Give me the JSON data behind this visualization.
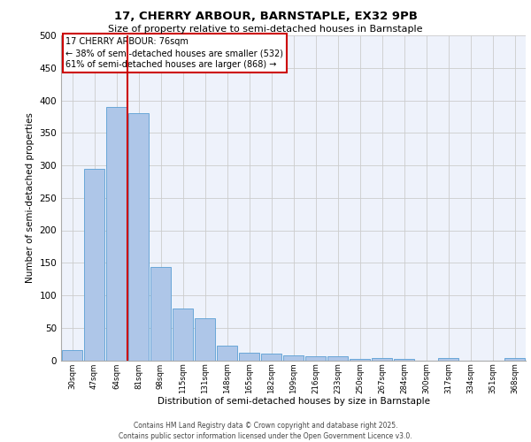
{
  "title1": "17, CHERRY ARBOUR, BARNSTAPLE, EX32 9PB",
  "title2": "Size of property relative to semi-detached houses in Barnstaple",
  "xlabel": "Distribution of semi-detached houses by size in Barnstaple",
  "ylabel": "Number of semi-detached properties",
  "categories": [
    "30sqm",
    "47sqm",
    "64sqm",
    "81sqm",
    "98sqm",
    "115sqm",
    "131sqm",
    "148sqm",
    "165sqm",
    "182sqm",
    "199sqm",
    "216sqm",
    "233sqm",
    "250sqm",
    "267sqm",
    "284sqm",
    "300sqm",
    "317sqm",
    "334sqm",
    "351sqm",
    "368sqm"
  ],
  "values": [
    15,
    295,
    390,
    380,
    143,
    80,
    65,
    22,
    12,
    10,
    7,
    6,
    6,
    2,
    4,
    2,
    0,
    3,
    0,
    0,
    3
  ],
  "bar_color": "#aec6e8",
  "bar_edge_color": "#5a9fd4",
  "grid_color": "#cccccc",
  "bg_color": "#eef2fb",
  "red_line_x": 2.5,
  "annotation_title": "17 CHERRY ARBOUR: 76sqm",
  "annotation_line1": "← 38% of semi-detached houses are smaller (532)",
  "annotation_line2": "61% of semi-detached houses are larger (868) →",
  "annotation_box_color": "#ffffff",
  "annotation_border_color": "#cc0000",
  "footer_line1": "Contains HM Land Registry data © Crown copyright and database right 2025.",
  "footer_line2": "Contains public sector information licensed under the Open Government Licence v3.0.",
  "ylim": [
    0,
    500
  ],
  "yticks": [
    0,
    50,
    100,
    150,
    200,
    250,
    300,
    350,
    400,
    450,
    500
  ],
  "title1_fontsize": 9.5,
  "title2_fontsize": 8.0
}
